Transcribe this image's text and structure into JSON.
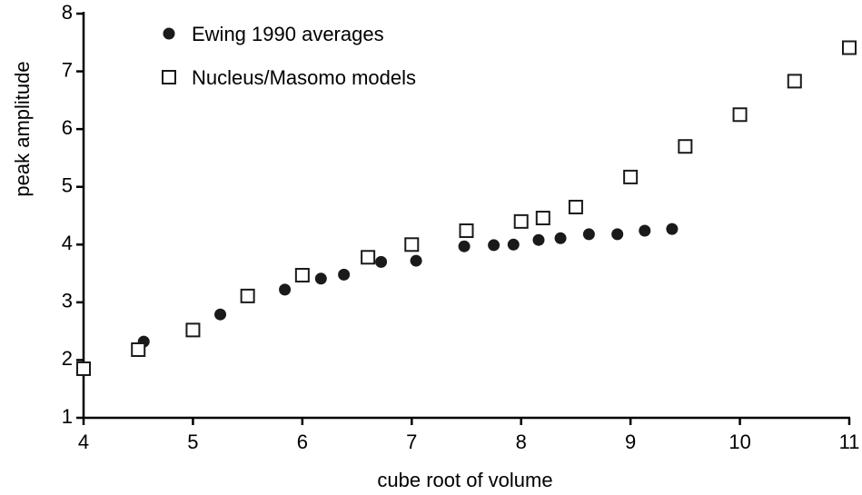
{
  "chart_data": {
    "type": "scatter",
    "xlabel": "cube root of volume",
    "ylabel": "peak amplitude",
    "xlim": [
      4,
      11
    ],
    "xticks": [
      4,
      5,
      6,
      7,
      8,
      9,
      10,
      11
    ],
    "ylim": [
      1,
      8
    ],
    "yticks": [
      1,
      2,
      3,
      4,
      5,
      6,
      7,
      8
    ],
    "grid": false,
    "legend": "upper left",
    "series": [
      {
        "name": "Ewing 1990 averages",
        "marker": "circle",
        "color": "#1a1a1a",
        "x": [
          4.55,
          5.25,
          5.84,
          6.17,
          6.38,
          6.72,
          7.04,
          7.48,
          7.75,
          7.93,
          8.16,
          8.36,
          8.62,
          8.88,
          9.13,
          9.38
        ],
        "values": [
          2.32,
          2.79,
          3.22,
          3.41,
          3.48,
          3.7,
          3.72,
          3.97,
          3.99,
          4.0,
          4.08,
          4.11,
          4.18,
          4.18,
          4.24,
          4.27
        ]
      },
      {
        "name": "Nucleus/Masomo models",
        "marker": "square",
        "color": "#1a1a1a",
        "x": [
          4,
          4.5,
          5,
          5.5,
          6,
          6.6,
          7,
          7.5,
          8,
          8.2,
          8.5,
          9,
          9.5,
          10,
          10.5,
          11
        ],
        "values": [
          1.85,
          2.18,
          2.52,
          3.11,
          3.47,
          3.78,
          4.0,
          4.24,
          4.4,
          4.46,
          4.65,
          5.17,
          5.7,
          6.25,
          6.83,
          7.41
        ]
      }
    ]
  }
}
